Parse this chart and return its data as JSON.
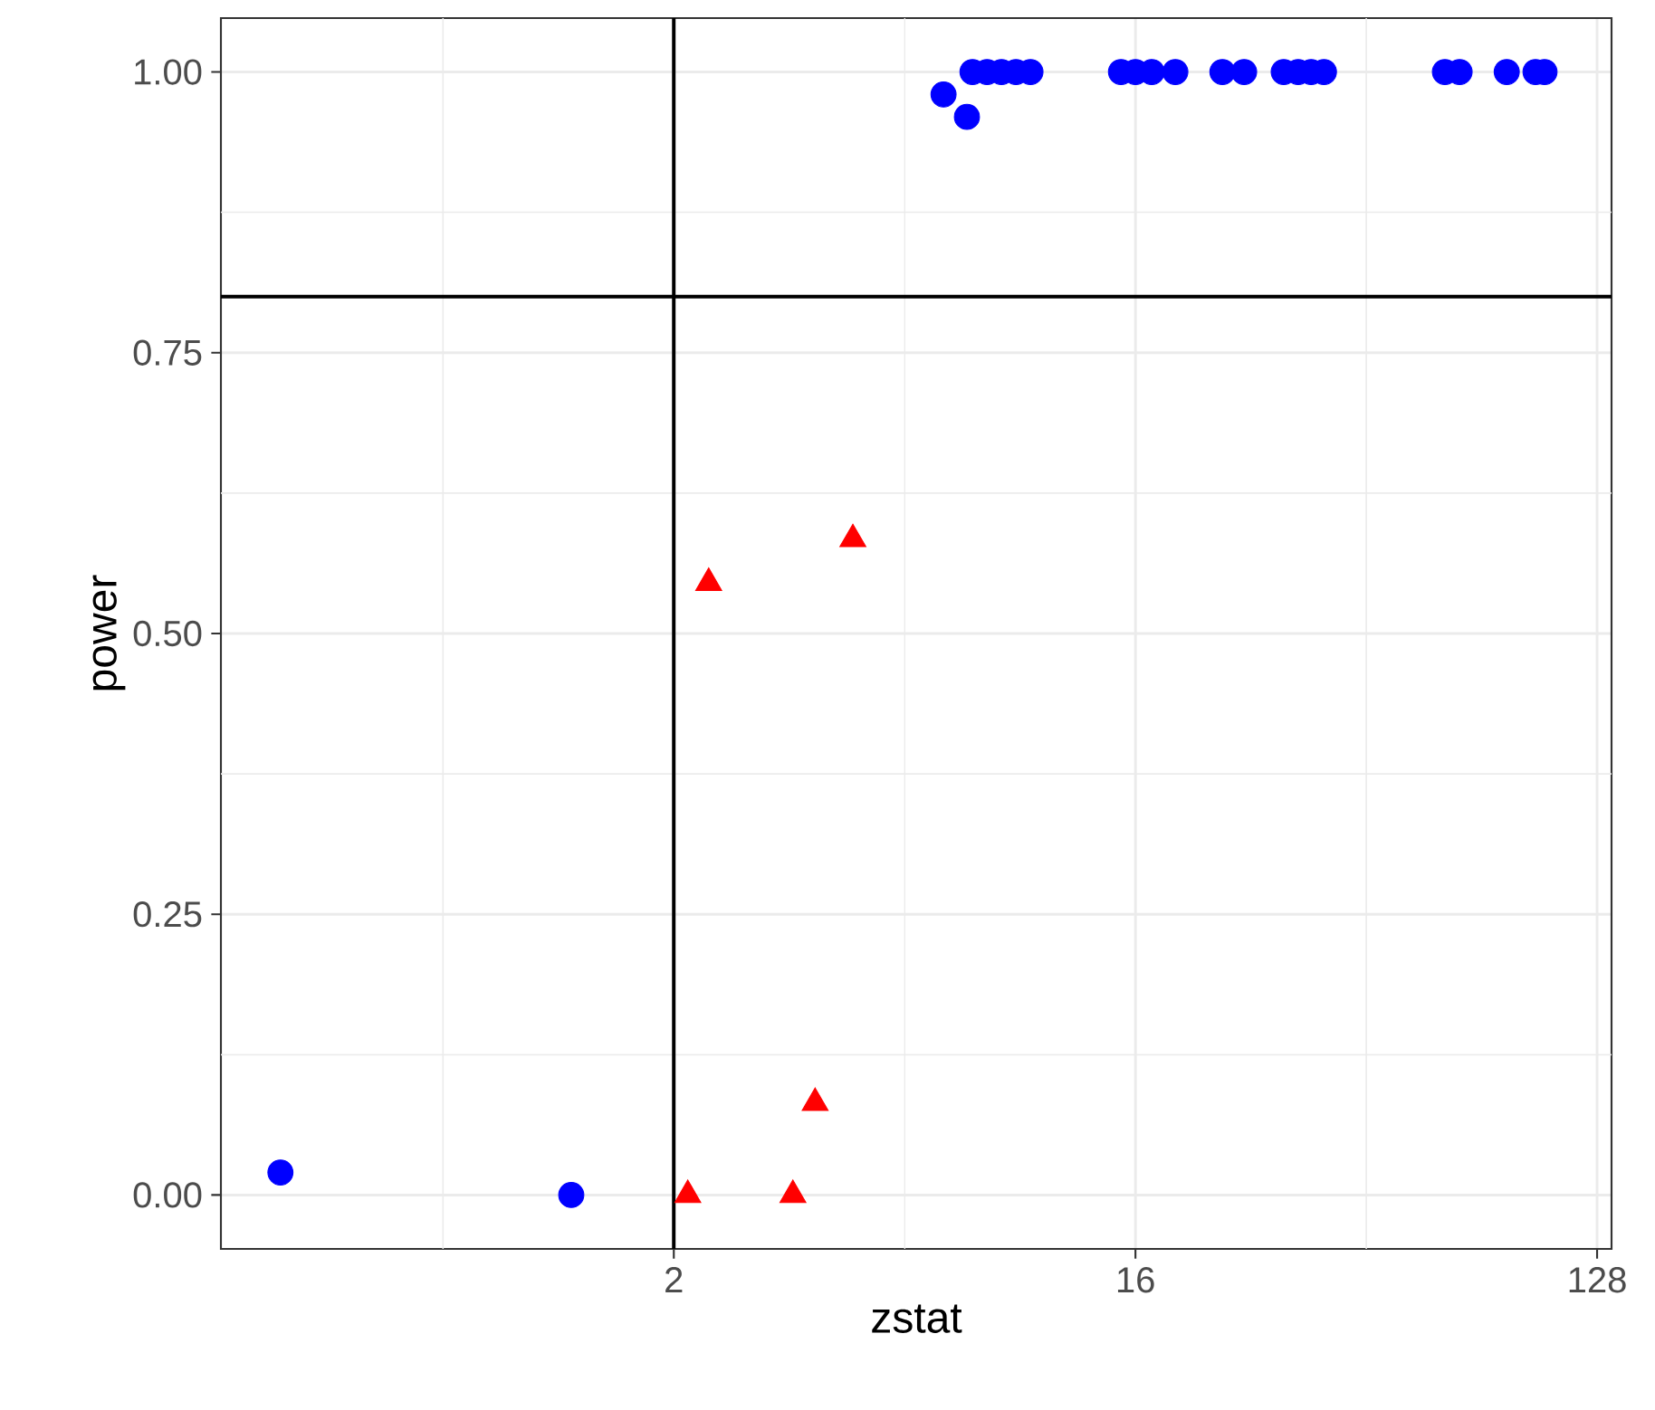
{
  "chart_data": {
    "type": "scatter",
    "xlabel": "zstat",
    "ylabel": "power",
    "log": "x",
    "grid": true,
    "xlim": [
      0.26,
      136.6
    ],
    "ylim": [
      -0.048,
      1.048
    ],
    "xticks": [
      2,
      16,
      128
    ],
    "yticks": [
      {
        "value": 0,
        "label": "0.00"
      },
      {
        "value": 0.25,
        "label": "0.25"
      },
      {
        "value": 0.5,
        "label": "0.50"
      },
      {
        "value": 0.75,
        "label": "0.75"
      },
      {
        "value": 1,
        "label": "1.00"
      }
    ],
    "ref_lines": [
      {
        "axis": "x",
        "value": 2,
        "color": "#000000"
      },
      {
        "axis": "y",
        "value": 0.8,
        "color": "#000000"
      }
    ],
    "series": [
      {
        "color": "#0000ff",
        "marker": "circle",
        "x": [
          0.34,
          1.26,
          6.74,
          7.49,
          7.68,
          8.2,
          8.75,
          9.34,
          9.97,
          14.99,
          16,
          17.22,
          19.15,
          23.67,
          26.1,
          31.2,
          33.3,
          35.3,
          37.4,
          64.5,
          68.9,
          85.2,
          97,
          101
        ],
        "values": [
          0.02,
          0,
          0.98,
          0.96,
          1,
          1,
          1,
          1,
          1,
          1,
          1,
          1,
          1,
          1,
          1,
          1,
          1,
          1,
          1,
          1,
          1,
          1,
          1,
          1
        ]
      },
      {
        "color": "#ff0000",
        "marker": "triangle",
        "x": [
          2.13,
          2.34,
          3.42,
          3.78,
          4.48
        ],
        "values": [
          0,
          0.545,
          0,
          0.082,
          0.584
        ]
      }
    ]
  }
}
